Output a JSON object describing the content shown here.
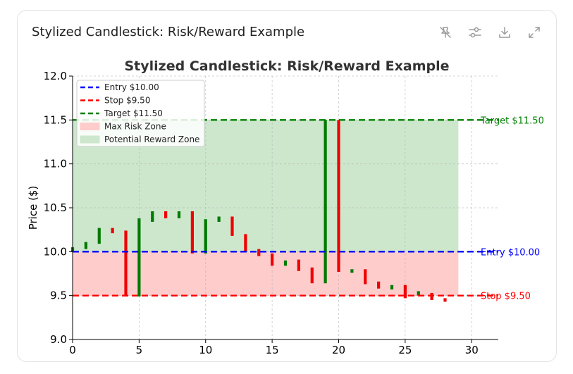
{
  "card": {
    "title": "Stylized Candlestick: Risk/Reward Example"
  },
  "toolbar": {
    "icons": [
      "pin-off-icon",
      "sliders-icon",
      "download-icon",
      "expand-icon"
    ]
  },
  "colors": {
    "up": "#007a00",
    "down": "#f00000",
    "entry": "#0000ff",
    "stop": "#ff0000",
    "target": "#008000",
    "risk_zone": "#ffcccc",
    "reward_zone": "#cde7cd"
  },
  "chart_data": {
    "type": "candlestick",
    "title": "Stylized Candlestick: Risk/Reward Example",
    "xlabel": "",
    "ylabel": "Price ($)",
    "xlim": [
      0,
      32
    ],
    "ylim": [
      9.0,
      12.0
    ],
    "xticks": [
      "0",
      "5",
      "10",
      "15",
      "20",
      "25",
      "30"
    ],
    "yticks": [
      "9.0",
      "9.5",
      "10.0",
      "10.5",
      "11.0",
      "11.5",
      "12.0"
    ],
    "grid": true,
    "legend_position": "top-left",
    "legend": [
      {
        "label": "Entry $10.00",
        "kind": "dash",
        "color": "#0000ff"
      },
      {
        "label": "Stop $9.50",
        "kind": "dash",
        "color": "#ff0000"
      },
      {
        "label": "Target $11.50",
        "kind": "dash",
        "color": "#008000"
      },
      {
        "label": "Max Risk Zone",
        "kind": "patch",
        "color": "#ffcccc"
      },
      {
        "label": "Potential Reward Zone",
        "kind": "patch",
        "color": "#cde7cd"
      }
    ],
    "levels": [
      {
        "name": "entry",
        "value": 10.0,
        "label": "Entry $10.00",
        "color": "#0000ff"
      },
      {
        "name": "stop",
        "value": 9.5,
        "label": "Stop $9.50",
        "color": "#ff0000"
      },
      {
        "name": "target",
        "value": 11.5,
        "label": "Target $11.50",
        "color": "#008000"
      }
    ],
    "zones": [
      {
        "name": "risk",
        "x_range": [
          0,
          29
        ],
        "y_range": [
          9.5,
          10.0
        ],
        "color": "#ffcccc"
      },
      {
        "name": "reward",
        "x_range": [
          0,
          29
        ],
        "y_range": [
          10.0,
          11.5
        ],
        "color": "#cde7cd"
      }
    ],
    "candles": [
      {
        "x": 0,
        "open": 10.0,
        "close": 10.05
      },
      {
        "x": 1,
        "open": 10.03,
        "close": 10.11
      },
      {
        "x": 2,
        "open": 10.09,
        "close": 10.27
      },
      {
        "x": 3,
        "open": 10.27,
        "close": 10.21
      },
      {
        "x": 4,
        "open": 10.24,
        "close": 9.49
      },
      {
        "x": 5,
        "open": 9.49,
        "close": 10.38
      },
      {
        "x": 6,
        "open": 10.34,
        "close": 10.46
      },
      {
        "x": 7,
        "open": 10.46,
        "close": 10.38
      },
      {
        "x": 8,
        "open": 10.38,
        "close": 10.46
      },
      {
        "x": 9,
        "open": 10.46,
        "close": 9.98
      },
      {
        "x": 10,
        "open": 9.98,
        "close": 10.37
      },
      {
        "x": 11,
        "open": 10.34,
        "close": 10.4
      },
      {
        "x": 12,
        "open": 10.4,
        "close": 10.18
      },
      {
        "x": 13,
        "open": 10.2,
        "close": 10.0
      },
      {
        "x": 14,
        "open": 10.03,
        "close": 9.95
      },
      {
        "x": 15,
        "open": 9.98,
        "close": 9.84
      },
      {
        "x": 16,
        "open": 9.84,
        "close": 9.9
      },
      {
        "x": 17,
        "open": 9.91,
        "close": 9.78
      },
      {
        "x": 18,
        "open": 9.82,
        "close": 9.64
      },
      {
        "x": 19,
        "open": 9.64,
        "close": 11.5
      },
      {
        "x": 20,
        "open": 11.5,
        "close": 9.77
      },
      {
        "x": 21,
        "open": 9.76,
        "close": 9.8
      },
      {
        "x": 22,
        "open": 9.8,
        "close": 9.63
      },
      {
        "x": 23,
        "open": 9.66,
        "close": 9.58
      },
      {
        "x": 24,
        "open": 9.57,
        "close": 9.62
      },
      {
        "x": 25,
        "open": 9.62,
        "close": 9.47
      },
      {
        "x": 26,
        "open": 9.5,
        "close": 9.55
      },
      {
        "x": 27,
        "open": 9.53,
        "close": 9.45
      },
      {
        "x": 28,
        "open": 9.47,
        "close": 9.43
      }
    ]
  }
}
